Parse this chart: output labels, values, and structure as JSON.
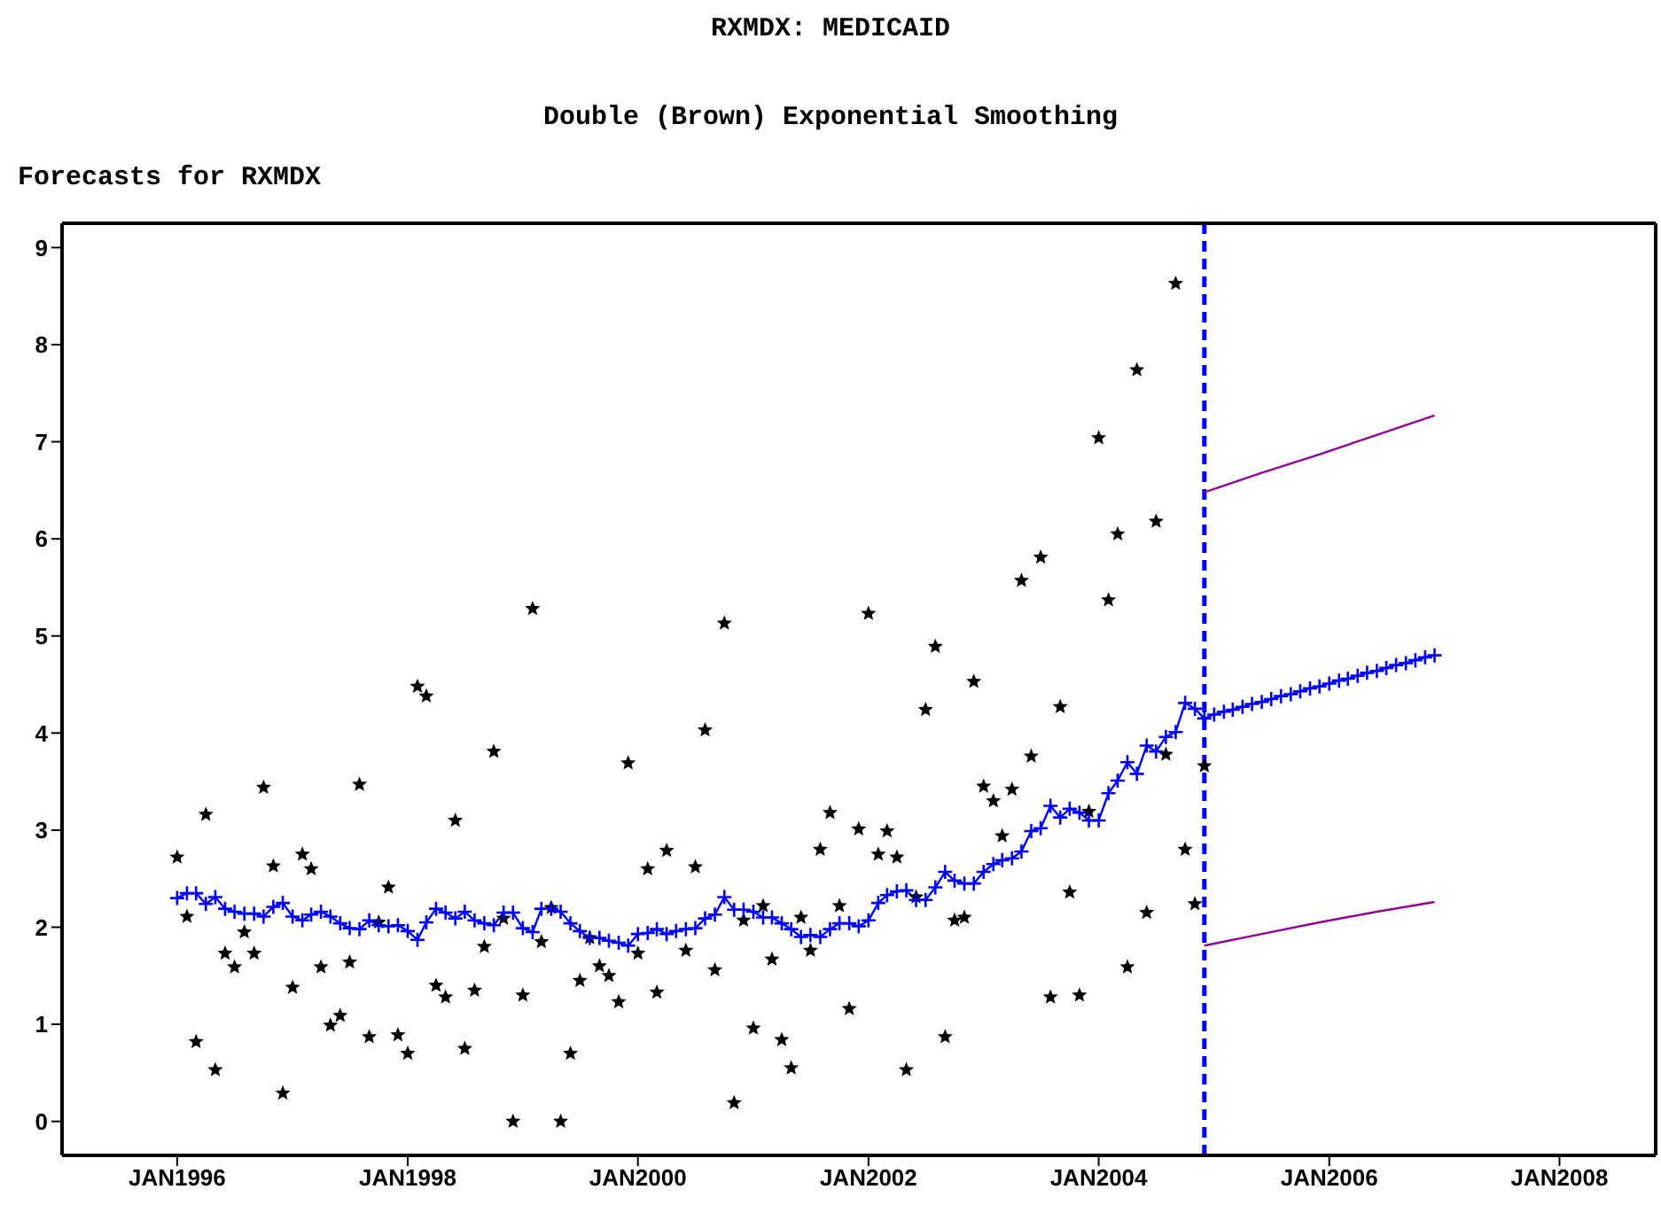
{
  "chart_data": {
    "type": "scatter",
    "title": "RXMDX: MEDICAID",
    "subtitle": "Double (Brown) Exponential Smoothing",
    "ylabel": "Forecasts for RXMDX",
    "xlim": [
      "1995-01",
      "2008-11"
    ],
    "xticks": [
      {
        "value": "1996-01",
        "label": "JAN1996"
      },
      {
        "value": "1998-01",
        "label": "JAN1998"
      },
      {
        "value": "2000-01",
        "label": "JAN2000"
      },
      {
        "value": "2002-01",
        "label": "JAN2002"
      },
      {
        "value": "2004-01",
        "label": "JAN2004"
      },
      {
        "value": "2006-01",
        "label": "JAN2006"
      },
      {
        "value": "2008-01",
        "label": "JAN2008"
      }
    ],
    "ylim": [
      -0.35,
      9.25
    ],
    "yticks": [
      0,
      1,
      2,
      3,
      4,
      5,
      6,
      7,
      8,
      9
    ],
    "x": [
      "1996-01",
      "1996-02",
      "1996-03",
      "1996-04",
      "1996-05",
      "1996-06",
      "1996-07",
      "1996-08",
      "1996-09",
      "1996-10",
      "1996-11",
      "1996-12",
      "1997-01",
      "1997-02",
      "1997-03",
      "1997-04",
      "1997-05",
      "1997-06",
      "1997-07",
      "1997-08",
      "1997-09",
      "1997-10",
      "1997-11",
      "1997-12",
      "1998-01",
      "1998-02",
      "1998-03",
      "1998-04",
      "1998-05",
      "1998-06",
      "1998-07",
      "1998-08",
      "1998-09",
      "1998-10",
      "1998-11",
      "1998-12",
      "1999-01",
      "1999-02",
      "1999-03",
      "1999-04",
      "1999-05",
      "1999-06",
      "1999-07",
      "1999-08",
      "1999-09",
      "1999-10",
      "1999-11",
      "1999-12",
      "2000-01",
      "2000-02",
      "2000-03",
      "2000-04",
      "2000-05",
      "2000-06",
      "2000-07",
      "2000-08",
      "2000-09",
      "2000-10",
      "2000-11",
      "2000-12",
      "2001-01",
      "2001-02",
      "2001-03",
      "2001-04",
      "2001-05",
      "2001-06",
      "2001-07",
      "2001-08",
      "2001-09",
      "2001-10",
      "2001-11",
      "2001-12",
      "2002-01",
      "2002-02",
      "2002-03",
      "2002-04",
      "2002-05",
      "2002-06",
      "2002-07",
      "2002-08",
      "2002-09",
      "2002-10",
      "2002-11",
      "2002-12",
      "2003-01",
      "2003-02",
      "2003-03",
      "2003-04",
      "2003-05",
      "2003-06",
      "2003-07",
      "2003-08",
      "2003-09",
      "2003-10",
      "2003-11",
      "2003-12",
      "2004-01",
      "2004-02",
      "2004-03",
      "2004-04",
      "2004-05",
      "2004-06",
      "2004-07",
      "2004-08",
      "2004-09",
      "2004-10",
      "2004-11",
      "2004-12"
    ],
    "series": [
      {
        "color": "#000000",
        "marker": "star",
        "values": [
          2.72,
          2.11,
          0.82,
          3.16,
          0.53,
          1.73,
          1.59,
          1.95,
          1.73,
          3.44,
          2.63,
          0.29,
          1.38,
          2.75,
          2.6,
          1.59,
          0.99,
          1.09,
          1.64,
          3.47,
          0.87,
          2.05,
          2.41,
          0.89,
          0.7,
          4.48,
          4.38,
          1.4,
          1.28,
          3.1,
          0.75,
          1.35,
          1.8,
          3.81,
          2.09,
          0,
          1.3,
          5.28,
          1.85,
          2.2,
          0,
          0.7,
          1.45,
          1.89,
          1.6,
          1.5,
          1.23,
          3.69,
          1.73,
          2.6,
          1.33,
          2.79,
          null,
          1.76,
          2.62,
          4.03,
          1.56,
          5.13,
          0.19,
          2.07,
          0.96,
          2.22,
          1.67,
          0.84,
          0.55,
          2.1,
          1.76,
          2.8,
          3.18,
          2.22,
          1.16,
          3.01,
          5.23,
          2.75,
          2.99,
          2.72,
          0.53,
          2.31,
          4.24,
          4.89,
          0.87,
          2.07,
          2.1,
          4.53,
          3.45,
          3.3,
          2.94,
          3.42,
          5.57,
          3.76,
          5.81,
          1.28,
          4.27,
          2.36,
          1.3,
          3.19,
          7.04,
          5.37,
          6.05,
          1.59,
          7.74,
          2.15,
          6.18,
          3.78,
          8.63,
          2.8,
          2.24,
          3.66
        ]
      },
      {
        "type": "line",
        "color": "#0000ff",
        "marker": "cross",
        "x": [
          "1996-01",
          "1996-02",
          "1996-03",
          "1996-04",
          "1996-05",
          "1996-06",
          "1996-07",
          "1996-08",
          "1996-09",
          "1996-10",
          "1996-11",
          "1996-12",
          "1997-01",
          "1997-02",
          "1997-03",
          "1997-04",
          "1997-05",
          "1997-06",
          "1997-07",
          "1997-08",
          "1997-09",
          "1997-10",
          "1997-11",
          "1997-12",
          "1998-01",
          "1998-02",
          "1998-03",
          "1998-04",
          "1998-05",
          "1998-06",
          "1998-07",
          "1998-08",
          "1998-09",
          "1998-10",
          "1998-11",
          "1998-12",
          "1999-01",
          "1999-02",
          "1999-03",
          "1999-04",
          "1999-05",
          "1999-06",
          "1999-07",
          "1999-08",
          "1999-09",
          "1999-10",
          "1999-11",
          "1999-12",
          "2000-01",
          "2000-02",
          "2000-03",
          "2000-04",
          "2000-05",
          "2000-06",
          "2000-07",
          "2000-08",
          "2000-09",
          "2000-10",
          "2000-11",
          "2000-12",
          "2001-01",
          "2001-02",
          "2001-03",
          "2001-04",
          "2001-05",
          "2001-06",
          "2001-07",
          "2001-08",
          "2001-09",
          "2001-10",
          "2001-11",
          "2001-12",
          "2002-01",
          "2002-02",
          "2002-03",
          "2002-04",
          "2002-05",
          "2002-06",
          "2002-07",
          "2002-08",
          "2002-09",
          "2002-10",
          "2002-11",
          "2002-12",
          "2003-01",
          "2003-02",
          "2003-03",
          "2003-04",
          "2003-05",
          "2003-06",
          "2003-07",
          "2003-08",
          "2003-09",
          "2003-10",
          "2003-11",
          "2003-12",
          "2004-01",
          "2004-02",
          "2004-03",
          "2004-04",
          "2004-05",
          "2004-06",
          "2004-07",
          "2004-08",
          "2004-09",
          "2004-10",
          "2004-11",
          "2004-12",
          "2005-01",
          "2005-02",
          "2005-03",
          "2005-04",
          "2005-05",
          "2005-06",
          "2005-07",
          "2005-08",
          "2005-09",
          "2005-10",
          "2005-11",
          "2005-12",
          "2006-01",
          "2006-02",
          "2006-03",
          "2006-04",
          "2006-05",
          "2006-06",
          "2006-07",
          "2006-08",
          "2006-09",
          "2006-10",
          "2006-11",
          "2006-12"
        ],
        "values": [
          2.3,
          2.35,
          2.35,
          2.24,
          2.31,
          2.19,
          2.16,
          2.14,
          2.14,
          2.11,
          2.21,
          2.25,
          2.11,
          2.07,
          2.13,
          2.16,
          2.11,
          2.04,
          1.99,
          1.98,
          2.07,
          2.02,
          2.01,
          2.02,
          1.96,
          1.87,
          2.05,
          2.19,
          2.15,
          2.09,
          2.16,
          2.07,
          2.04,
          2.02,
          2.15,
          2.15,
          1.99,
          1.95,
          2.19,
          2.19,
          2.16,
          2.04,
          1.96,
          1.89,
          1.89,
          1.86,
          1.84,
          1.81,
          1.93,
          1.94,
          1.98,
          1.93,
          1.96,
          1.98,
          1.99,
          2.09,
          2.13,
          2.31,
          2.18,
          2.18,
          2.16,
          2.1,
          2.1,
          2.04,
          1.98,
          1.9,
          1.92,
          1.9,
          1.98,
          2.04,
          2.04,
          2.01,
          2.07,
          2.25,
          2.33,
          2.37,
          2.38,
          2.28,
          2.28,
          2.41,
          2.57,
          2.48,
          2.45,
          2.45,
          2.57,
          2.65,
          2.69,
          2.71,
          2.78,
          2.99,
          3.02,
          3.25,
          3.13,
          3.22,
          3.18,
          3.1,
          3.1,
          3.38,
          3.51,
          3.7,
          3.58,
          3.87,
          3.81,
          3.96,
          4.01,
          4.31,
          4.25,
          4.15,
          4.19,
          4.22,
          4.24,
          4.27,
          4.3,
          4.32,
          4.35,
          4.38,
          4.4,
          4.43,
          4.46,
          4.48,
          4.51,
          4.54,
          4.56,
          4.59,
          4.62,
          4.64,
          4.67,
          4.7,
          4.72,
          4.75,
          4.78,
          4.8
        ]
      },
      {
        "type": "line",
        "color": "#990099",
        "marker": "none",
        "x": [
          "2004-12",
          "2005-06",
          "2005-12",
          "2006-06",
          "2006-12"
        ],
        "values": [
          6.48,
          6.68,
          6.87,
          7.07,
          7.27
        ]
      },
      {
        "type": "line",
        "color": "#990099",
        "marker": "none",
        "x": [
          "2004-12",
          "2005-06",
          "2005-12",
          "2006-06",
          "2006-12"
        ],
        "values": [
          1.81,
          1.93,
          2.05,
          2.16,
          2.26
        ]
      }
    ],
    "ref_lines": [
      {
        "axis": "x",
        "value": "2004-12",
        "color": "#0000ff",
        "line_style": "dashed"
      }
    ],
    "grid": false
  }
}
